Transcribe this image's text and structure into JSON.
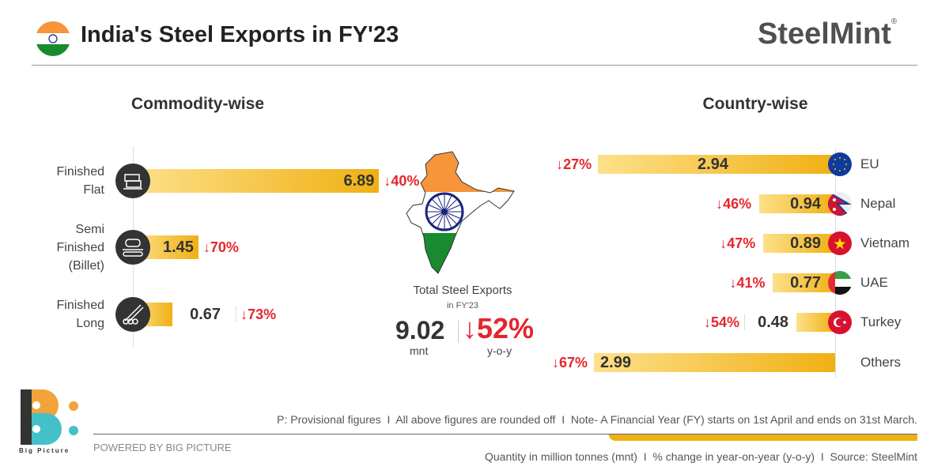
{
  "header": {
    "title": "India's Steel Exports in FY'23",
    "brand": "SteelMint",
    "brand_mark": "®"
  },
  "sections": {
    "left": "Commodity-wise",
    "right": "Country-wise"
  },
  "center": {
    "label": "Total Steel Exports",
    "sublabel": "in FY'23",
    "total": "9.02",
    "unit": "mnt",
    "change": "52%",
    "change_label": "y-o-y"
  },
  "colors": {
    "bar_start": "#fde08a",
    "bar_end": "#f0b014",
    "decline": "#e3262d",
    "text": "#333333"
  },
  "chart_data": [
    {
      "type": "bar",
      "orientation": "horizontal",
      "title": "Commodity-wise",
      "unit": "mnt",
      "categories": [
        "Finished Flat",
        "Semi Finished (Billet)",
        "Finished Long"
      ],
      "label_lines": [
        [
          "Finished",
          "Flat"
        ],
        [
          "Semi",
          "Finished",
          "(Billet)"
        ],
        [
          "Finished",
          "Long"
        ]
      ],
      "icons": [
        "flat-steel-icon",
        "billet-icon",
        "long-steel-icon"
      ],
      "values": [
        6.89,
        1.45,
        0.67
      ],
      "value_labels": [
        "6.89",
        "1.45",
        "0.67"
      ],
      "yoy_change": [
        "40%",
        "70%",
        "73%"
      ],
      "change_direction": "down"
    },
    {
      "type": "bar",
      "orientation": "horizontal",
      "title": "Country-wise",
      "unit": "mnt",
      "categories": [
        "EU",
        "Nepal",
        "Vietnam",
        "UAE",
        "Turkey",
        "Others"
      ],
      "icons": [
        "eu-flag-icon",
        "nepal-flag-icon",
        "vietnam-flag-icon",
        "uae-flag-icon",
        "turkey-flag-icon",
        ""
      ],
      "values": [
        2.94,
        0.94,
        0.89,
        0.77,
        0.48,
        2.99
      ],
      "value_labels": [
        "2.94",
        "0.94",
        "0.89",
        "0.77",
        "0.48",
        "2.99"
      ],
      "yoy_change": [
        "27%",
        "46%",
        "47%",
        "41%",
        "54%",
        "67%"
      ],
      "change_direction": "down"
    }
  ],
  "footer": {
    "notes": "P: Provisional figures  I  All above figures are rounded off  I  Note- A Financial Year (FY) starts on 1st April and ends on 31st March.",
    "powered": "POWERED BY BIG PICTURE",
    "logo_text": "Big Picture",
    "units": "Quantity in million tonnes (mnt)  I  % change in year-on-year (y-o-y)  I  Source: SteelMint"
  }
}
